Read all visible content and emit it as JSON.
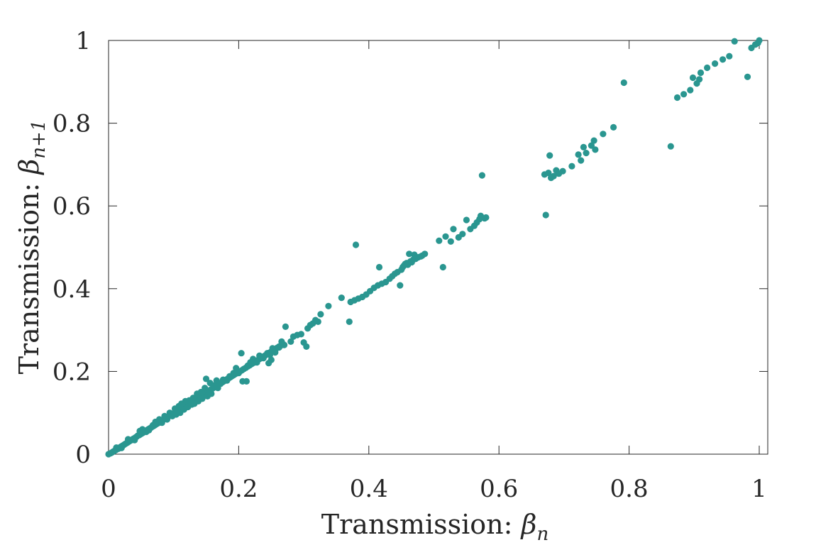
{
  "chart_data": {
    "type": "scatter",
    "xlabel": "Transmission: ",
    "xlabel_symbol": "β",
    "xlabel_subscript": "n",
    "ylabel": "Transmission: ",
    "ylabel_symbol": "β",
    "ylabel_subscript": "n+1",
    "xlim": [
      0,
      1
    ],
    "ylim": [
      0,
      1
    ],
    "x_ticks": [
      0,
      0.2,
      0.4,
      0.6,
      0.8,
      1
    ],
    "y_ticks": [
      0,
      0.2,
      0.4,
      0.6,
      0.8,
      1
    ],
    "x_tick_labels": [
      "0",
      "0.2",
      "0.4",
      "0.6",
      "0.8",
      "1"
    ],
    "y_tick_labels": [
      "0",
      "0.2",
      "0.4",
      "0.6",
      "0.8",
      "1"
    ],
    "grid": false,
    "marker_color": "#2a9690",
    "points": [
      [
        0.0,
        0.0
      ],
      [
        0.003,
        0.002
      ],
      [
        0.005,
        0.004
      ],
      [
        0.007,
        0.006
      ],
      [
        0.009,
        0.008
      ],
      [
        0.011,
        0.01
      ],
      [
        0.013,
        0.012
      ],
      [
        0.015,
        0.013
      ],
      [
        0.017,
        0.016
      ],
      [
        0.019,
        0.018
      ],
      [
        0.021,
        0.02
      ],
      [
        0.023,
        0.022
      ],
      [
        0.025,
        0.024
      ],
      [
        0.027,
        0.026
      ],
      [
        0.029,
        0.028
      ],
      [
        0.031,
        0.03
      ],
      [
        0.033,
        0.032
      ],
      [
        0.035,
        0.034
      ],
      [
        0.037,
        0.036
      ],
      [
        0.039,
        0.038
      ],
      [
        0.041,
        0.04
      ],
      [
        0.043,
        0.042
      ],
      [
        0.045,
        0.045
      ],
      [
        0.047,
        0.046
      ],
      [
        0.049,
        0.048
      ],
      [
        0.051,
        0.05
      ],
      [
        0.053,
        0.052
      ],
      [
        0.055,
        0.055
      ],
      [
        0.057,
        0.056
      ],
      [
        0.059,
        0.058
      ],
      [
        0.061,
        0.06
      ],
      [
        0.063,
        0.062
      ],
      [
        0.065,
        0.064
      ],
      [
        0.067,
        0.066
      ],
      [
        0.069,
        0.068
      ],
      [
        0.071,
        0.07
      ],
      [
        0.073,
        0.072
      ],
      [
        0.075,
        0.074
      ],
      [
        0.077,
        0.076
      ],
      [
        0.079,
        0.078
      ],
      [
        0.081,
        0.08
      ],
      [
        0.083,
        0.082
      ],
      [
        0.085,
        0.084
      ],
      [
        0.087,
        0.086
      ],
      [
        0.089,
        0.088
      ],
      [
        0.091,
        0.09
      ],
      [
        0.093,
        0.092
      ],
      [
        0.095,
        0.094
      ],
      [
        0.097,
        0.096
      ],
      [
        0.099,
        0.098
      ],
      [
        0.101,
        0.1
      ],
      [
        0.103,
        0.102
      ],
      [
        0.105,
        0.104
      ],
      [
        0.107,
        0.106
      ],
      [
        0.109,
        0.108
      ],
      [
        0.111,
        0.11
      ],
      [
        0.113,
        0.112
      ],
      [
        0.115,
        0.114
      ],
      [
        0.117,
        0.116
      ],
      [
        0.119,
        0.118
      ],
      [
        0.121,
        0.12
      ],
      [
        0.123,
        0.122
      ],
      [
        0.125,
        0.124
      ],
      [
        0.127,
        0.126
      ],
      [
        0.129,
        0.128
      ],
      [
        0.131,
        0.13
      ],
      [
        0.133,
        0.132
      ],
      [
        0.135,
        0.134
      ],
      [
        0.137,
        0.136
      ],
      [
        0.139,
        0.138
      ],
      [
        0.141,
        0.14
      ],
      [
        0.143,
        0.142
      ],
      [
        0.145,
        0.144
      ],
      [
        0.147,
        0.146
      ],
      [
        0.149,
        0.148
      ],
      [
        0.151,
        0.15
      ],
      [
        0.153,
        0.152
      ],
      [
        0.155,
        0.154
      ],
      [
        0.157,
        0.156
      ],
      [
        0.159,
        0.158
      ],
      [
        0.161,
        0.16
      ],
      [
        0.163,
        0.162
      ],
      [
        0.165,
        0.164
      ],
      [
        0.167,
        0.166
      ],
      [
        0.169,
        0.168
      ],
      [
        0.171,
        0.17
      ],
      [
        0.173,
        0.172
      ],
      [
        0.175,
        0.174
      ],
      [
        0.177,
        0.176
      ],
      [
        0.179,
        0.178
      ],
      [
        0.181,
        0.18
      ],
      [
        0.183,
        0.182
      ],
      [
        0.185,
        0.184
      ],
      [
        0.187,
        0.186
      ],
      [
        0.189,
        0.188
      ],
      [
        0.191,
        0.19
      ],
      [
        0.193,
        0.192
      ],
      [
        0.195,
        0.194
      ],
      [
        0.197,
        0.196
      ],
      [
        0.199,
        0.198
      ],
      [
        0.202,
        0.2
      ],
      [
        0.205,
        0.203
      ],
      [
        0.208,
        0.206
      ],
      [
        0.211,
        0.209
      ],
      [
        0.214,
        0.212
      ],
      [
        0.217,
        0.215
      ],
      [
        0.22,
        0.218
      ],
      [
        0.223,
        0.221
      ],
      [
        0.226,
        0.224
      ],
      [
        0.229,
        0.227
      ],
      [
        0.232,
        0.23
      ],
      [
        0.235,
        0.233
      ],
      [
        0.238,
        0.236
      ],
      [
        0.241,
        0.239
      ],
      [
        0.244,
        0.242
      ],
      [
        0.247,
        0.245
      ],
      [
        0.25,
        0.248
      ],
      [
        0.253,
        0.251
      ],
      [
        0.256,
        0.254
      ],
      [
        0.259,
        0.257
      ],
      [
        0.262,
        0.26
      ],
      [
        0.265,
        0.263
      ],
      [
        0.268,
        0.266
      ],
      [
        0.012,
        0.016
      ],
      [
        0.02,
        0.015
      ],
      [
        0.03,
        0.036
      ],
      [
        0.04,
        0.034
      ],
      [
        0.048,
        0.056
      ],
      [
        0.052,
        0.06
      ],
      [
        0.058,
        0.054
      ],
      [
        0.062,
        0.058
      ],
      [
        0.068,
        0.07
      ],
      [
        0.072,
        0.078
      ],
      [
        0.078,
        0.084
      ],
      [
        0.082,
        0.076
      ],
      [
        0.086,
        0.092
      ],
      [
        0.09,
        0.084
      ],
      [
        0.094,
        0.1
      ],
      [
        0.098,
        0.092
      ],
      [
        0.102,
        0.11
      ],
      [
        0.104,
        0.096
      ],
      [
        0.108,
        0.116
      ],
      [
        0.11,
        0.1
      ],
      [
        0.112,
        0.122
      ],
      [
        0.116,
        0.108
      ],
      [
        0.118,
        0.128
      ],
      [
        0.122,
        0.114
      ],
      [
        0.124,
        0.13
      ],
      [
        0.128,
        0.12
      ],
      [
        0.13,
        0.136
      ],
      [
        0.132,
        0.122
      ],
      [
        0.136,
        0.146
      ],
      [
        0.138,
        0.128
      ],
      [
        0.142,
        0.15
      ],
      [
        0.144,
        0.134
      ],
      [
        0.148,
        0.16
      ],
      [
        0.15,
        0.182
      ],
      [
        0.152,
        0.14
      ],
      [
        0.156,
        0.172
      ],
      [
        0.158,
        0.146
      ],
      [
        0.162,
        0.166
      ],
      [
        0.166,
        0.178
      ],
      [
        0.168,
        0.16
      ],
      [
        0.172,
        0.17
      ],
      [
        0.176,
        0.18
      ],
      [
        0.182,
        0.178
      ],
      [
        0.186,
        0.188
      ],
      [
        0.192,
        0.196
      ],
      [
        0.196,
        0.208
      ],
      [
        0.2,
        0.196
      ],
      [
        0.204,
        0.244
      ],
      [
        0.206,
        0.176
      ],
      [
        0.212,
        0.176
      ],
      [
        0.214,
        0.214
      ],
      [
        0.218,
        0.222
      ],
      [
        0.222,
        0.23
      ],
      [
        0.228,
        0.222
      ],
      [
        0.232,
        0.238
      ],
      [
        0.238,
        0.232
      ],
      [
        0.244,
        0.244
      ],
      [
        0.248,
        0.24
      ],
      [
        0.252,
        0.256
      ],
      [
        0.256,
        0.246
      ],
      [
        0.246,
        0.22
      ],
      [
        0.25,
        0.228
      ],
      [
        0.262,
        0.258
      ],
      [
        0.266,
        0.272
      ],
      [
        0.27,
        0.264
      ],
      [
        0.272,
        0.308
      ],
      [
        0.28,
        0.272
      ],
      [
        0.284,
        0.284
      ],
      [
        0.29,
        0.288
      ],
      [
        0.296,
        0.29
      ],
      [
        0.3,
        0.27
      ],
      [
        0.304,
        0.26
      ],
      [
        0.306,
        0.304
      ],
      [
        0.31,
        0.312
      ],
      [
        0.314,
        0.316
      ],
      [
        0.318,
        0.324
      ],
      [
        0.322,
        0.32
      ],
      [
        0.326,
        0.338
      ],
      [
        0.338,
        0.358
      ],
      [
        0.358,
        0.378
      ],
      [
        0.37,
        0.32
      ],
      [
        0.372,
        0.368
      ],
      [
        0.378,
        0.372
      ],
      [
        0.38,
        0.506
      ],
      [
        0.384,
        0.376
      ],
      [
        0.39,
        0.38
      ],
      [
        0.396,
        0.386
      ],
      [
        0.402,
        0.394
      ],
      [
        0.408,
        0.402
      ],
      [
        0.414,
        0.408
      ],
      [
        0.416,
        0.452
      ],
      [
        0.42,
        0.412
      ],
      [
        0.426,
        0.416
      ],
      [
        0.432,
        0.424
      ],
      [
        0.436,
        0.43
      ],
      [
        0.44,
        0.436
      ],
      [
        0.444,
        0.44
      ],
      [
        0.448,
        0.408
      ],
      [
        0.45,
        0.446
      ],
      [
        0.452,
        0.452
      ],
      [
        0.454,
        0.456
      ],
      [
        0.456,
        0.46
      ],
      [
        0.458,
        0.462
      ],
      [
        0.46,
        0.458
      ],
      [
        0.462,
        0.484
      ],
      [
        0.464,
        0.466
      ],
      [
        0.466,
        0.464
      ],
      [
        0.468,
        0.47
      ],
      [
        0.47,
        0.482
      ],
      [
        0.472,
        0.472
      ],
      [
        0.476,
        0.476
      ],
      [
        0.48,
        0.478
      ],
      [
        0.482,
        0.48
      ],
      [
        0.486,
        0.484
      ],
      [
        0.508,
        0.516
      ],
      [
        0.514,
        0.452
      ],
      [
        0.518,
        0.526
      ],
      [
        0.526,
        0.514
      ],
      [
        0.53,
        0.544
      ],
      [
        0.538,
        0.524
      ],
      [
        0.544,
        0.532
      ],
      [
        0.55,
        0.566
      ],
      [
        0.556,
        0.544
      ],
      [
        0.562,
        0.552
      ],
      [
        0.566,
        0.56
      ],
      [
        0.57,
        0.568
      ],
      [
        0.572,
        0.576
      ],
      [
        0.574,
        0.674
      ],
      [
        0.578,
        0.57
      ],
      [
        0.58,
        0.572
      ],
      [
        0.67,
        0.676
      ],
      [
        0.672,
        0.578
      ],
      [
        0.676,
        0.68
      ],
      [
        0.678,
        0.722
      ],
      [
        0.68,
        0.668
      ],
      [
        0.684,
        0.672
      ],
      [
        0.688,
        0.686
      ],
      [
        0.692,
        0.678
      ],
      [
        0.698,
        0.684
      ],
      [
        0.712,
        0.696
      ],
      [
        0.722,
        0.724
      ],
      [
        0.726,
        0.71
      ],
      [
        0.73,
        0.742
      ],
      [
        0.734,
        0.728
      ],
      [
        0.742,
        0.746
      ],
      [
        0.746,
        0.758
      ],
      [
        0.748,
        0.736
      ],
      [
        0.76,
        0.774
      ],
      [
        0.776,
        0.79
      ],
      [
        0.792,
        0.898
      ],
      [
        0.864,
        0.744
      ],
      [
        0.874,
        0.862
      ],
      [
        0.884,
        0.87
      ],
      [
        0.894,
        0.88
      ],
      [
        0.898,
        0.91
      ],
      [
        0.904,
        0.896
      ],
      [
        0.908,
        0.906
      ],
      [
        0.91,
        0.922
      ],
      [
        0.92,
        0.934
      ],
      [
        0.932,
        0.944
      ],
      [
        0.944,
        0.954
      ],
      [
        0.954,
        0.962
      ],
      [
        0.962,
        0.998
      ],
      [
        0.982,
        0.912
      ],
      [
        0.988,
        0.982
      ],
      [
        0.994,
        0.99
      ],
      [
        0.998,
        0.994
      ],
      [
        1.0,
        1.0
      ]
    ]
  }
}
